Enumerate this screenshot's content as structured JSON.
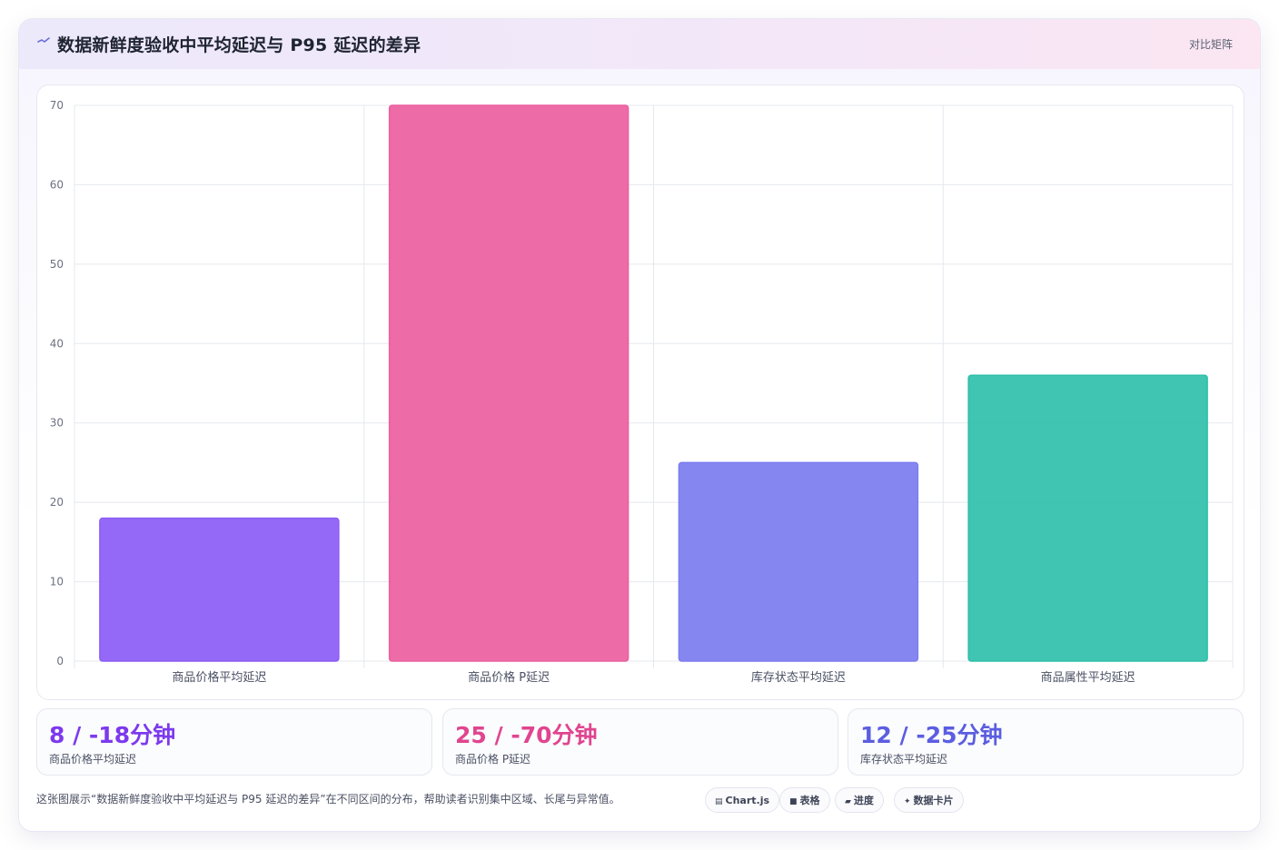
{
  "header": {
    "title": "数据新鲜度验收中平均延迟与 P95 延迟的差异",
    "title_icon": "activity-line-icon",
    "link_label": "对比矩阵"
  },
  "colors": {
    "purple": "#8b5cf6",
    "pink": "#ec5f9f",
    "indigo": "#7c7cf0",
    "teal": "#2fc0aa",
    "stat_purple": "#7c3aed",
    "stat_pink": "#e0458f",
    "stat_indigo": "#5b5ee0"
  },
  "chart_data": {
    "type": "bar",
    "categories": [
      "商品价格平均延迟",
      "商品价格 P延迟",
      "库存状态平均延迟",
      "商品属性平均延迟"
    ],
    "values": [
      18,
      70,
      25,
      36
    ],
    "bar_colors": [
      "#8b5cf6",
      "#ec5f9f",
      "#7c7cf0",
      "#2fc0aa"
    ],
    "ylim": [
      0,
      70
    ],
    "yticks": [
      0,
      10,
      20,
      30,
      40,
      50,
      60,
      70
    ],
    "grid": true,
    "legend": "none",
    "title": "",
    "xlabel": "",
    "ylabel": ""
  },
  "stats": [
    {
      "value": "8 / -18分钟",
      "label": "商品价格平均延迟",
      "color": "#7c3aed"
    },
    {
      "value": "25 / -70分钟",
      "label": "商品价格 P延迟",
      "color": "#e0458f"
    },
    {
      "value": "12 / -25分钟",
      "label": "库存状态平均延迟",
      "color": "#5b5ee0"
    }
  ],
  "caption": "这张图展示“数据新鲜度验收中平均延迟与 P95 延迟的差异”在不同区间的分布，帮助读者识别集中区域、长尾与异常值。",
  "pills": [
    {
      "label": "Chart.js",
      "icon": "chart-icon",
      "glyph": "▤"
    },
    {
      "label": "表格",
      "icon": "table-icon",
      "glyph": "■"
    },
    {
      "label": "进度",
      "icon": "progress-icon",
      "glyph": "▰"
    },
    {
      "label": "数据卡片",
      "icon": "sparkle-icon",
      "glyph": "✦"
    }
  ]
}
